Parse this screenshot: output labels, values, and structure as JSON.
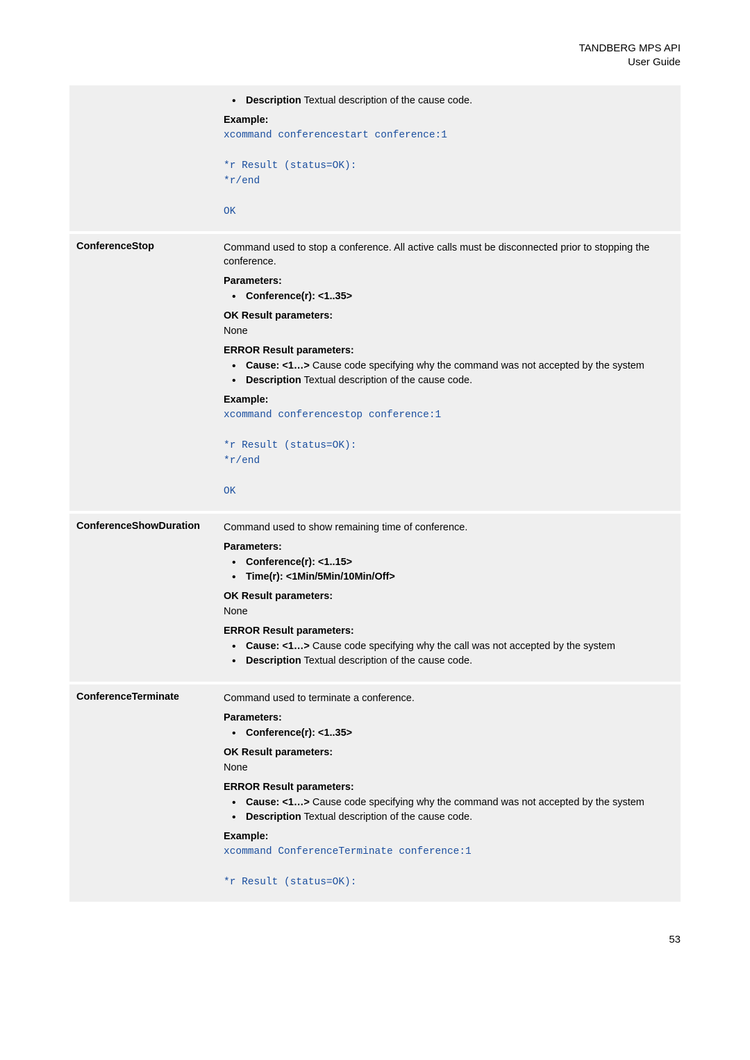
{
  "header": {
    "line1": "TANDBERG MPS API",
    "line2": "User Guide"
  },
  "rows": [
    {
      "left": "",
      "blocks": [
        {
          "type": "ul",
          "items": [
            {
              "bold": "Description",
              "rest": " Textual description of the cause code."
            }
          ]
        },
        {
          "type": "heading",
          "text": "Example:"
        },
        {
          "type": "code",
          "text": "xcommand conferencestart conference:1"
        },
        {
          "type": "code",
          "text": " "
        },
        {
          "type": "code",
          "text": "*r Result (status=OK):"
        },
        {
          "type": "code",
          "text": "*r/end"
        },
        {
          "type": "code",
          "text": " "
        },
        {
          "type": "code",
          "text": "OK"
        }
      ]
    },
    {
      "left": "ConferenceStop",
      "blocks": [
        {
          "type": "p",
          "text": "Command used to stop a conference. All active calls must be disconnected prior to stopping the conference."
        },
        {
          "type": "heading",
          "text": "Parameters:"
        },
        {
          "type": "ul",
          "items": [
            {
              "bold": "Conference(r): <1..35>",
              "rest": ""
            }
          ]
        },
        {
          "type": "heading",
          "text": "OK Result parameters:"
        },
        {
          "type": "p",
          "text": "None"
        },
        {
          "type": "heading",
          "text": "ERROR Result parameters:"
        },
        {
          "type": "ul",
          "items": [
            {
              "bold": "Cause: <1…>",
              "rest": " Cause code specifying why the command was not accepted by the system"
            },
            {
              "bold": "Description",
              "rest": " Textual description of the cause code."
            }
          ]
        },
        {
          "type": "heading",
          "text": "Example:"
        },
        {
          "type": "code",
          "text": "xcommand conferencestop conference:1"
        },
        {
          "type": "code",
          "text": " "
        },
        {
          "type": "code",
          "text": "*r Result (status=OK):"
        },
        {
          "type": "code",
          "text": "*r/end"
        },
        {
          "type": "code",
          "text": " "
        },
        {
          "type": "code",
          "text": "OK"
        }
      ]
    },
    {
      "left": "ConferenceShowDuration",
      "blocks": [
        {
          "type": "p",
          "text": "Command used to show remaining time of conference."
        },
        {
          "type": "heading",
          "text": "Parameters:"
        },
        {
          "type": "ul",
          "items": [
            {
              "bold": "Conference(r): <1..15>",
              "rest": ""
            },
            {
              "bold": "Time(r): <1Min/5Min/10Min/Off>",
              "rest": ""
            }
          ]
        },
        {
          "type": "heading",
          "text": "OK Result parameters:"
        },
        {
          "type": "p",
          "text": "None"
        },
        {
          "type": "heading",
          "text": "ERROR Result parameters:"
        },
        {
          "type": "ul",
          "items": [
            {
              "bold": "Cause: <1…>",
              "rest": " Cause code specifying why the call was not accepted by the system"
            },
            {
              "bold": "Description",
              "rest": " Textual description of the cause code."
            }
          ]
        }
      ]
    },
    {
      "left": "ConferenceTerminate",
      "blocks": [
        {
          "type": "p",
          "text": "Command used to terminate a conference."
        },
        {
          "type": "heading",
          "text": "Parameters:"
        },
        {
          "type": "ul",
          "items": [
            {
              "bold": "Conference(r): <1..35>",
              "rest": ""
            }
          ]
        },
        {
          "type": "heading",
          "text": "OK Result parameters:"
        },
        {
          "type": "p",
          "text": "None"
        },
        {
          "type": "heading",
          "text": "ERROR Result parameters:"
        },
        {
          "type": "ul",
          "items": [
            {
              "bold": "Cause: <1…>",
              "rest": " Cause code specifying why the command was not accepted by the system"
            },
            {
              "bold": "Description",
              "rest": " Textual description of the cause code."
            }
          ]
        },
        {
          "type": "heading",
          "text": "Example:"
        },
        {
          "type": "code",
          "text": "xcommand ConferenceTerminate conference:1"
        },
        {
          "type": "code",
          "text": " "
        },
        {
          "type": "code",
          "text": "*r Result (status=OK):"
        }
      ]
    }
  ],
  "footer": {
    "page_number": "53"
  },
  "style": {
    "page_bg": "#ffffff",
    "table_bg": "#efefef",
    "code_color": "#1a4e9e",
    "text_color": "#000000"
  }
}
